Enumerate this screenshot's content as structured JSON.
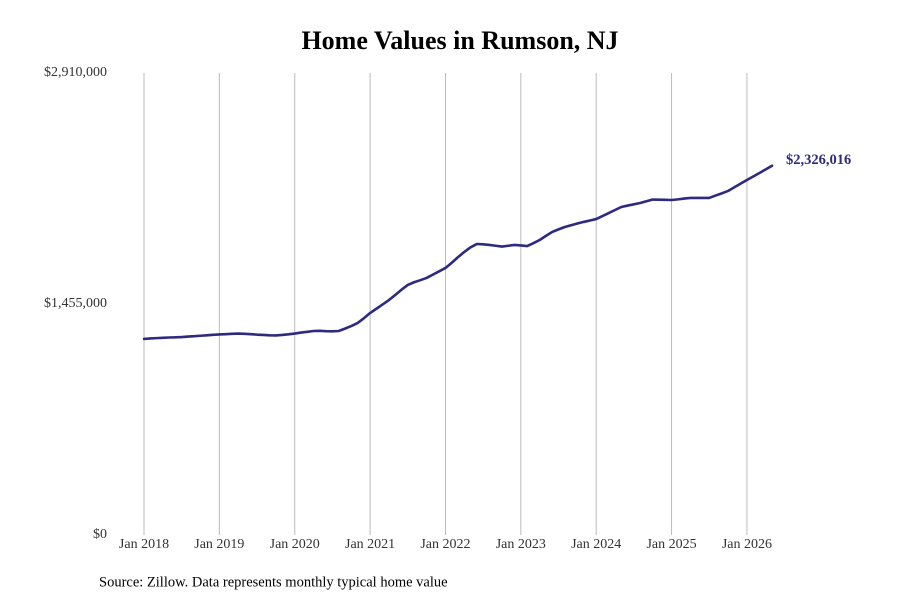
{
  "chart_data": {
    "type": "line",
    "title": "Home Values in Rumson, NJ",
    "source": "Source: Zillow. Data represents monthly typical home value",
    "color": "#2e2a80",
    "x": [
      "2018-01",
      "2018-02",
      "2018-03",
      "2018-04",
      "2018-05",
      "2018-06",
      "2018-07",
      "2018-08",
      "2018-09",
      "2018-10",
      "2018-11",
      "2018-12",
      "2019-01",
      "2019-02",
      "2019-03",
      "2019-04",
      "2019-05",
      "2019-06",
      "2019-07",
      "2019-08",
      "2019-09",
      "2019-10",
      "2019-11",
      "2019-12",
      "2020-01",
      "2020-02",
      "2020-03",
      "2020-04",
      "2020-05",
      "2020-06",
      "2020-07",
      "2020-08",
      "2020-09",
      "2020-10",
      "2020-11",
      "2020-12",
      "2021-01",
      "2021-02",
      "2021-03",
      "2021-04",
      "2021-05",
      "2021-06",
      "2021-07",
      "2021-08",
      "2021-09",
      "2021-10",
      "2021-11",
      "2021-12",
      "2022-01",
      "2022-02",
      "2022-03",
      "2022-04",
      "2022-05",
      "2022-06",
      "2022-07",
      "2022-08",
      "2022-09",
      "2022-10",
      "2022-11",
      "2022-12",
      "2023-01",
      "2023-02",
      "2023-03",
      "2023-04",
      "2023-05",
      "2023-06",
      "2023-07",
      "2023-08",
      "2023-09",
      "2023-10",
      "2023-11",
      "2023-12",
      "2024-01",
      "2024-02",
      "2024-03",
      "2024-04",
      "2024-05",
      "2024-06",
      "2024-07",
      "2024-08",
      "2024-09",
      "2024-10",
      "2024-11",
      "2024-12",
      "2025-01",
      "2025-02",
      "2025-03",
      "2025-04",
      "2025-05",
      "2025-06",
      "2025-07",
      "2025-08",
      "2025-09",
      "2025-10",
      "2025-11",
      "2025-12",
      "2026-01",
      "2026-02",
      "2026-03",
      "2026-04",
      "2026-05"
    ],
    "values": [
      1235000,
      1238000,
      1240000,
      1242000,
      1244000,
      1245000,
      1247000,
      1250000,
      1252000,
      1255000,
      1258000,
      1261000,
      1263000,
      1265000,
      1267000,
      1269000,
      1267000,
      1265000,
      1262000,
      1260000,
      1258000,
      1257000,
      1260000,
      1264000,
      1269000,
      1275000,
      1280000,
      1285000,
      1286000,
      1284000,
      1283000,
      1285000,
      1300000,
      1316000,
      1335000,
      1365000,
      1398000,
      1425000,
      1452000,
      1480000,
      1512000,
      1545000,
      1575000,
      1592000,
      1605000,
      1619000,
      1640000,
      1661000,
      1682000,
      1715000,
      1750000,
      1783000,
      1812000,
      1833000,
      1831000,
      1827000,
      1822000,
      1817000,
      1822000,
      1827000,
      1824000,
      1820000,
      1838000,
      1858000,
      1884000,
      1909000,
      1925000,
      1940000,
      1951000,
      1962000,
      1972000,
      1981000,
      1990000,
      2009000,
      2028000,
      2047000,
      2066000,
      2075000,
      2083000,
      2091000,
      2102000,
      2113000,
      2112000,
      2111000,
      2110000,
      2114000,
      2119000,
      2123000,
      2123000,
      2123000,
      2123000,
      2138000,
      2152000,
      2167000,
      2190000,
      2213000,
      2236000,
      2258000,
      2280000,
      2303000,
      2326016
    ],
    "value_labels": [
      null,
      null,
      null,
      null,
      null,
      null,
      null,
      null,
      null,
      null,
      null,
      null,
      null,
      null,
      null,
      null,
      null,
      null,
      null,
      null,
      null,
      null,
      null,
      null,
      null,
      null,
      null,
      null,
      null,
      null,
      null,
      null,
      null,
      null,
      null,
      null,
      null,
      null,
      null,
      null,
      null,
      null,
      null,
      null,
      null,
      null,
      null,
      null,
      null,
      null,
      null,
      null,
      null,
      null,
      null,
      null,
      null,
      null,
      null,
      null,
      null,
      null,
      null,
      null,
      null,
      null,
      null,
      null,
      null,
      null,
      null,
      null,
      null,
      null,
      null,
      null,
      null,
      null,
      null,
      null,
      null,
      null,
      null,
      null,
      null,
      null,
      null,
      null,
      null,
      null,
      null,
      null,
      null,
      null,
      null,
      null,
      null,
      null,
      null,
      null,
      "$2,326,016"
    ],
    "xlim": [
      "2017-08",
      "2026-12"
    ],
    "xticks": [
      {
        "value": "2018-01",
        "label": "Jan 2018"
      },
      {
        "value": "2019-01",
        "label": "Jan 2019"
      },
      {
        "value": "2020-01",
        "label": "Jan 2020"
      },
      {
        "value": "2021-01",
        "label": "Jan 2021"
      },
      {
        "value": "2022-01",
        "label": "Jan 2022"
      },
      {
        "value": "2023-01",
        "label": "Jan 2023"
      },
      {
        "value": "2024-01",
        "label": "Jan 2024"
      },
      {
        "value": "2025-01",
        "label": "Jan 2025"
      },
      {
        "value": "2026-01",
        "label": "Jan 2026"
      }
    ],
    "ylim": [
      0,
      2910000
    ],
    "yticks": [
      {
        "value": 0,
        "label": "$0"
      },
      {
        "value": 1455000,
        "label": "$1,455,000"
      },
      {
        "value": 2910000,
        "label": "$2,910,000"
      }
    ],
    "grid": true
  }
}
